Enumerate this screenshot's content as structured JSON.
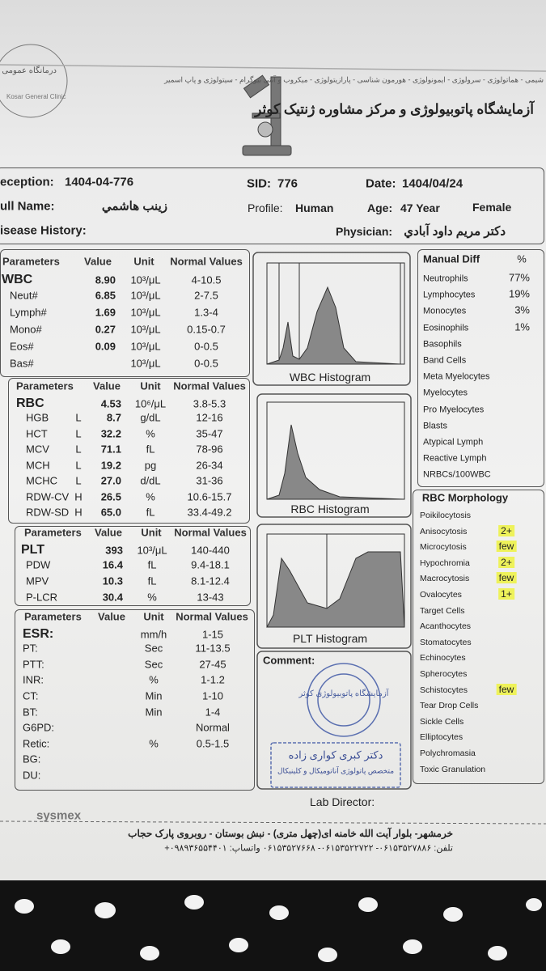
{
  "header": {
    "clinic": "درمانگاه عمومی کوثر",
    "clinic_en": "Kosar General Clinic",
    "services": "شیمی - هماتولوژی - سرولوژی - ایمونولوژی - هورمون شناسی - پارازیتولوژی - میکروب و آنتی بیوگرام - سیتولوژی و پاپ اسمیر",
    "lab_name": "آزمایشگاه پاتوبیولوژی و مرکز مشاوره ژنتیک کوثر"
  },
  "patient": {
    "reception_label": "eception:",
    "reception": "1404-04-776",
    "sid_label": "SID:",
    "sid": "776",
    "date_label": "Date:",
    "date": "1404/04/24",
    "name_label": "ull Name:",
    "name": "زينب هاشمي",
    "profile_label": "Profile:",
    "profile": "Human",
    "age_label": "Age:",
    "age": "47 Year",
    "sex": "Female",
    "history_label": "isease History:",
    "physician_label": "Physician:",
    "physician": "دکتر مریم داود آبادي"
  },
  "wbc_table": {
    "header": [
      "Parameters",
      "Value",
      "Unit",
      "Normal Values"
    ],
    "rows": [
      [
        "WBC",
        null,
        "8.90",
        "10³/μL",
        "4-10.5"
      ],
      [
        "Neut#",
        null,
        "6.85",
        "10³/μL",
        "2-7.5"
      ],
      [
        "Lymph#",
        null,
        "1.69",
        "10³/μL",
        "1.3-4"
      ],
      [
        "Mono#",
        null,
        "0.27",
        "10³/μL",
        "0.15-0.7"
      ],
      [
        "Eos#",
        null,
        "0.09",
        "10³/μL",
        "0-0.5"
      ],
      [
        "Bas#",
        null,
        null,
        "10³/μL",
        "0-0.5"
      ]
    ]
  },
  "rbc_table": {
    "header": [
      "Parameters",
      "Value",
      "Unit",
      "Normal Values"
    ],
    "rows": [
      [
        "RBC",
        null,
        "4.53",
        "10⁶/μL",
        "3.8-5.3"
      ],
      [
        "HGB",
        "L",
        "8.7",
        "g/dL",
        "12-16"
      ],
      [
        "HCT",
        "L",
        "32.2",
        "%",
        "35-47"
      ],
      [
        "MCV",
        "L",
        "71.1",
        "fL",
        "78-96"
      ],
      [
        "MCH",
        "L",
        "19.2",
        "pg",
        "26-34"
      ],
      [
        "MCHC",
        "L",
        "27.0",
        "d/dL",
        "31-36"
      ],
      [
        "RDW-CV",
        "H",
        "26.5",
        "%",
        "10.6-15.7"
      ],
      [
        "RDW-SD",
        "H",
        "65.0",
        "fL",
        "33.4-49.2"
      ]
    ]
  },
  "plt_table": {
    "header": [
      "Parameters",
      "Value",
      "Unit",
      "Normal Values"
    ],
    "rows": [
      [
        "PLT",
        null,
        "393",
        "10³/μL",
        "140-440"
      ],
      [
        "PDW",
        null,
        "16.4",
        "fL",
        "9.4-18.1"
      ],
      [
        "MPV",
        null,
        "10.3",
        "fL",
        "8.1-12.4"
      ],
      [
        "P-LCR",
        null,
        "30.4",
        "%",
        "13-43"
      ]
    ]
  },
  "coag_table": {
    "header": [
      "Parameters",
      "Value",
      "Unit",
      "Normal Values"
    ],
    "rows": [
      [
        "ESR:",
        null,
        null,
        "mm/h",
        "1-15"
      ],
      [
        "PT:",
        null,
        null,
        "Sec",
        "11-13.5"
      ],
      [
        "PTT:",
        null,
        null,
        "Sec",
        "27-45"
      ],
      [
        "INR:",
        null,
        null,
        "%",
        "1-1.2"
      ],
      [
        "CT:",
        null,
        null,
        "Min",
        "1-10"
      ],
      [
        "BT:",
        null,
        null,
        "Min",
        "1-4"
      ],
      [
        "G6PD:",
        null,
        null,
        null,
        "Normal"
      ],
      [
        "Retic:",
        null,
        null,
        "%",
        "0.5-1.5"
      ],
      [
        "BG:",
        null,
        null,
        null,
        null
      ],
      [
        "DU:",
        null,
        null,
        null,
        null
      ]
    ]
  },
  "histograms": {
    "wbc": "WBC Histogram",
    "rbc": "RBC Histogram",
    "plt": "PLT Histogram"
  },
  "manual_diff": {
    "header": [
      "Manual Diff",
      "%"
    ],
    "rows": [
      [
        "Neutrophils",
        "77%"
      ],
      [
        "Lymphocytes",
        "19%"
      ],
      [
        "Monocytes",
        "3%"
      ],
      [
        "Eosinophils",
        "1%"
      ],
      [
        "Basophils",
        null
      ],
      [
        "Band Cells",
        null
      ],
      [
        "Meta Myelocytes",
        null
      ],
      [
        "Myelocytes",
        null
      ],
      [
        "Pro Myelocytes",
        null
      ],
      [
        "Blasts",
        null
      ],
      [
        "Atypical Lymph",
        null
      ],
      [
        "Reactive Lymph",
        null
      ],
      [
        "NRBCs/100WBC",
        null
      ]
    ]
  },
  "rbc_morphology": {
    "title": "RBC Morphology",
    "rows": [
      [
        "Poikilocytosis",
        null
      ],
      [
        "Anisocytosis",
        "2+"
      ],
      [
        "Microcytosis",
        "few"
      ],
      [
        "Hypochromia",
        "2+"
      ],
      [
        "Macrocytosis",
        "few"
      ],
      [
        "Ovalocytes",
        "1+"
      ],
      [
        "Target Cells",
        null
      ],
      [
        "Acanthocytes",
        null
      ],
      [
        "Stomatocytes",
        null
      ],
      [
        "Echinocytes",
        null
      ],
      [
        "Spherocytes",
        null
      ],
      [
        "Schistocytes",
        "few"
      ],
      [
        "Tear Drop Cells",
        null
      ],
      [
        "Sickle Cells",
        null
      ],
      [
        "Elliptocytes",
        null
      ],
      [
        "Polychromasia",
        null
      ],
      [
        "Toxic Granulation",
        null
      ]
    ]
  },
  "comment": {
    "label": "Comment:",
    "stamp": "آزمایشگاه پاتوبیولوژی کوثر",
    "signature": "دکتر کبری کواری زاده",
    "signature_title": "متخصص پاتولوژی آناتومیکال و کلینیکال"
  },
  "lab_director": "Lab Director:",
  "footer": {
    "brand": "sysmex",
    "address": "خرمشهر- بلوار آیت الله خامنه ای(چهل متری) - نبش بوستان - روبروی پارک حجاب",
    "phone": "تلفن: ۰۶۱۵۳۵۲۷۸۸۶- ۰۶۱۵۳۵۲۲۷۲۲- ۰۶۱۵۳۵۲۷۶۶۸ واتساپ: ۰۹۸۹۳۶۵۵۴۴۰۱+"
  }
}
